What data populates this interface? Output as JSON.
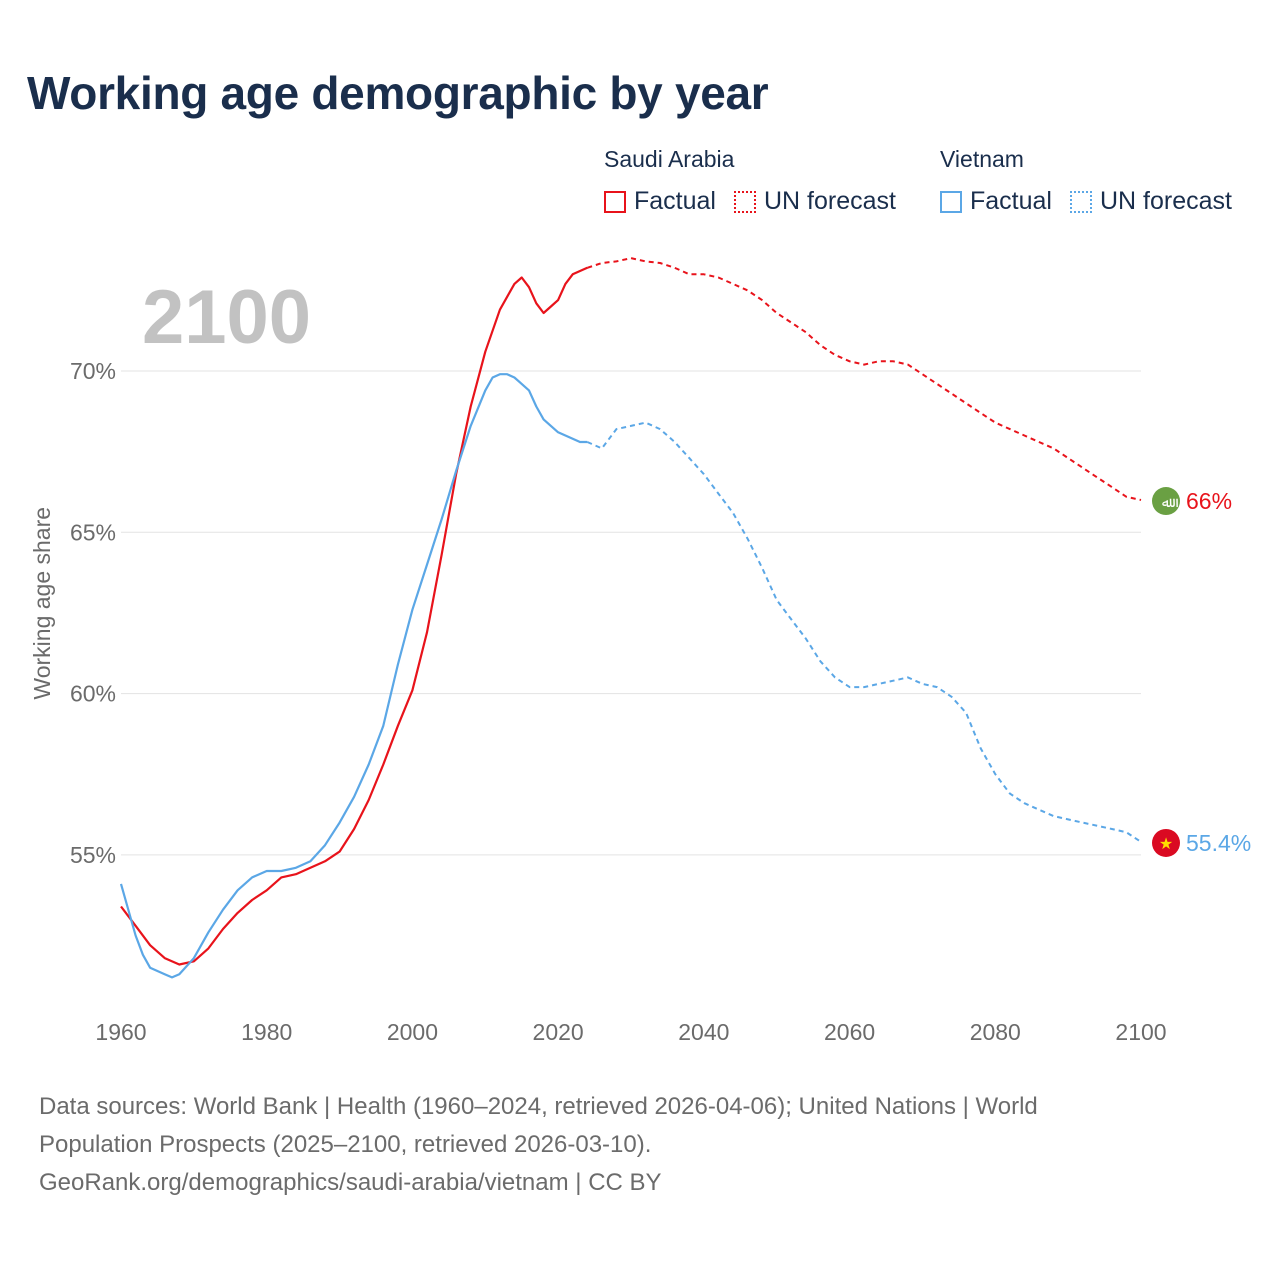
{
  "title": "Working age demographic by year",
  "legend": [
    {
      "country": "Saudi Arabia",
      "factual": "Factual",
      "forecast": "UN forecast",
      "color": "#e8131b"
    },
    {
      "country": "Vietnam",
      "factual": "Factual",
      "forecast": "UN forecast",
      "color": "#5ba7e6"
    }
  ],
  "footer": {
    "line1": "Data sources: World Bank | Health (1960–2024, retrieved 2026-04-06); United Nations | World",
    "line2": "Population Prospects (2025–2100, retrieved 2026-03-10).",
    "line3": "GeoRank.org/demographics/saudi-arabia/vietnam | CC BY"
  },
  "chart_data": {
    "type": "line",
    "title": "Working age demographic by year",
    "year_label": "2100",
    "xlabel": "",
    "ylabel": "Working age share",
    "xlim": [
      1960,
      2100
    ],
    "ylim": [
      50.5,
      74
    ],
    "x_ticks": [
      1960,
      1980,
      2000,
      2020,
      2040,
      2060,
      2080,
      2100
    ],
    "y_ticks": [
      55,
      60,
      65,
      70
    ],
    "y_tick_labels": [
      "55%",
      "60%",
      "65%",
      "70%"
    ],
    "forecast_start": 2024,
    "series": [
      {
        "name": "Saudi Arabia",
        "color": "#e8131b",
        "end_label": "66%",
        "flag_glyph": "ﷲ",
        "flag_color": "#6aa043",
        "x": [
          1960,
          1962,
          1964,
          1966,
          1968,
          1970,
          1972,
          1974,
          1976,
          1978,
          1980,
          1982,
          1984,
          1986,
          1988,
          1990,
          1992,
          1994,
          1996,
          1998,
          2000,
          2002,
          2004,
          2006,
          2008,
          2010,
          2012,
          2014,
          2015,
          2016,
          2017,
          2018,
          2019,
          2020,
          2021,
          2022,
          2023,
          2024,
          2026,
          2028,
          2030,
          2032,
          2034,
          2036,
          2038,
          2040,
          2042,
          2044,
          2046,
          2048,
          2050,
          2052,
          2054,
          2056,
          2058,
          2060,
          2062,
          2064,
          2066,
          2068,
          2070,
          2072,
          2074,
          2076,
          2078,
          2080,
          2082,
          2084,
          2086,
          2088,
          2090,
          2092,
          2094,
          2096,
          2098,
          2100
        ],
        "y": [
          53.4,
          52.8,
          52.2,
          51.8,
          51.6,
          51.7,
          52.1,
          52.7,
          53.2,
          53.6,
          53.9,
          54.3,
          54.4,
          54.6,
          54.8,
          55.1,
          55.8,
          56.7,
          57.8,
          59.0,
          60.1,
          61.9,
          64.3,
          66.8,
          68.9,
          70.6,
          71.9,
          72.7,
          72.9,
          72.6,
          72.1,
          71.8,
          72.0,
          72.2,
          72.7,
          73.0,
          73.1,
          73.2,
          73.35,
          73.4,
          73.5,
          73.4,
          73.35,
          73.2,
          73.0,
          73.0,
          72.9,
          72.7,
          72.5,
          72.2,
          71.8,
          71.5,
          71.2,
          70.8,
          70.5,
          70.3,
          70.2,
          70.3,
          70.3,
          70.2,
          69.9,
          69.6,
          69.3,
          69.0,
          68.7,
          68.4,
          68.2,
          68.0,
          67.8,
          67.6,
          67.3,
          67.0,
          66.7,
          66.4,
          66.1,
          66.0
        ]
      },
      {
        "name": "Vietnam",
        "color": "#5ba7e6",
        "end_label": "55.4%",
        "flag_glyph": "★",
        "flag_color": "#da0a22",
        "x": [
          1960,
          1962,
          1963,
          1964,
          1966,
          1967,
          1968,
          1970,
          1972,
          1974,
          1976,
          1978,
          1980,
          1982,
          1984,
          1986,
          1988,
          1990,
          1992,
          1994,
          1996,
          1998,
          2000,
          2002,
          2004,
          2006,
          2008,
          2010,
          2011,
          2012,
          2013,
          2014,
          2015,
          2016,
          2017,
          2018,
          2019,
          2020,
          2021,
          2022,
          2023,
          2024,
          2026,
          2028,
          2030,
          2032,
          2034,
          2036,
          2038,
          2040,
          2042,
          2044,
          2046,
          2048,
          2050,
          2052,
          2054,
          2056,
          2058,
          2060,
          2062,
          2064,
          2066,
          2068,
          2070,
          2072,
          2074,
          2076,
          2078,
          2080,
          2082,
          2084,
          2086,
          2088,
          2090,
          2092,
          2094,
          2096,
          2098,
          2100
        ],
        "y": [
          54.1,
          52.5,
          51.9,
          51.5,
          51.3,
          51.2,
          51.3,
          51.8,
          52.6,
          53.3,
          53.9,
          54.3,
          54.5,
          54.5,
          54.6,
          54.8,
          55.3,
          56.0,
          56.8,
          57.8,
          59.0,
          60.9,
          62.6,
          64.0,
          65.4,
          66.9,
          68.3,
          69.4,
          69.8,
          69.9,
          69.9,
          69.8,
          69.6,
          69.4,
          68.9,
          68.5,
          68.3,
          68.1,
          68.0,
          67.9,
          67.8,
          67.8,
          67.6,
          68.2,
          68.3,
          68.4,
          68.2,
          67.8,
          67.3,
          66.8,
          66.2,
          65.6,
          64.8,
          63.9,
          62.9,
          62.3,
          61.7,
          61.0,
          60.5,
          60.2,
          60.2,
          60.3,
          60.4,
          60.5,
          60.3,
          60.2,
          59.9,
          59.4,
          58.3,
          57.5,
          56.9,
          56.6,
          56.4,
          56.2,
          56.1,
          56.0,
          55.9,
          55.8,
          55.7,
          55.4
        ]
      }
    ]
  }
}
